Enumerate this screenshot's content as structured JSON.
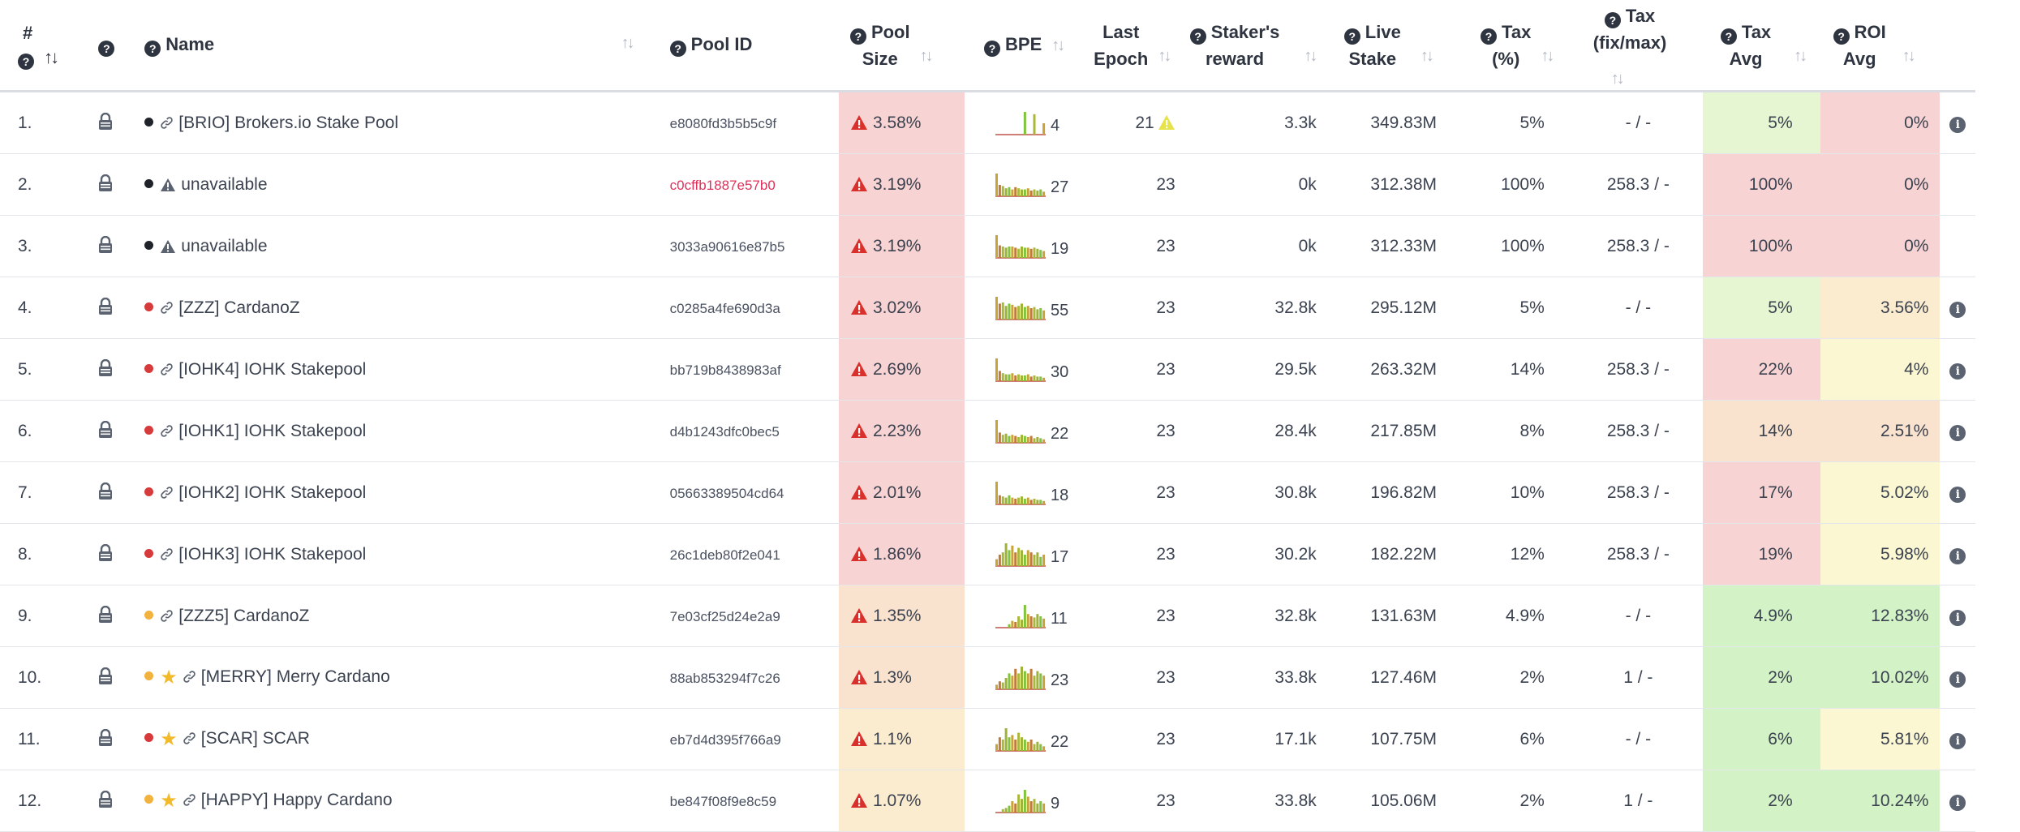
{
  "headers": {
    "num_hash": "#",
    "name": "Name",
    "pool_id": "Pool ID",
    "pool_size_1": "Pool",
    "pool_size_2": "Size",
    "bpe": "BPE",
    "last_epoch_1": "Last",
    "last_epoch_2": "Epoch",
    "staker_1": "Staker's",
    "staker_2": "reward",
    "live_1": "Live",
    "live_2": "Stake",
    "tax_1": "Tax",
    "tax_2": "(%)",
    "fix_1": "Tax",
    "fix_2": "(fix/max)",
    "taxavg_1": "Tax",
    "taxavg_2": "Avg",
    "roi_1": "ROI",
    "roi_2": "Avg"
  },
  "colors": {
    "red_bg": "#f8d3d3",
    "orange_bg": "#f9e3cf",
    "cream_bg": "#fbecd0",
    "yellow_bg": "#fbf7d2",
    "green_bg": "#d3f2c6",
    "lightgreen_bg": "#e6f6d2",
    "dot_black": "#1f2329",
    "dot_red": "#d63a3a",
    "dot_orange": "#f2b23e",
    "warn_red": "#d9302c",
    "warn_yellow": "#e6e24a"
  },
  "rows": [
    {
      "num": "1.",
      "dot": "black",
      "star": false,
      "icon": "link",
      "name": "[BRIO] Brokers.io Stake Pool",
      "pool_id": "e8080fd3b5b5c9f",
      "pid_red": false,
      "size": "3.58%",
      "size_bg": "red",
      "bpe": "4",
      "bpe_bars": [
        0,
        0,
        0,
        0,
        0,
        0,
        0,
        0,
        0,
        1,
        0,
        0,
        0.9,
        0,
        0,
        0.5
      ],
      "last": "21",
      "last_warn": true,
      "staker": "3.3k",
      "live": "349.83M",
      "tax": "5%",
      "fix": "- / -",
      "taxavg": "5%",
      "taxavg_bg": "lightgreen",
      "roi": "0%",
      "roi_bg": "red",
      "info": true
    },
    {
      "num": "2.",
      "dot": "black",
      "star": false,
      "icon": "warning",
      "name": "unavailable",
      "pool_id": "c0cffb1887e57b0",
      "pid_red": true,
      "size": "3.19%",
      "size_bg": "red",
      "bpe": "27",
      "bpe_bars": [
        1,
        0.5,
        0.45,
        0.35,
        0.4,
        0.3,
        0.4,
        0.35,
        0.3,
        0.3,
        0.35,
        0.25,
        0.3,
        0.25,
        0.3,
        0.2
      ],
      "last": "23",
      "last_warn": false,
      "staker": "0k",
      "live": "312.38M",
      "tax": "100%",
      "fix": "258.3 / -",
      "taxavg": "100%",
      "taxavg_bg": "red",
      "roi": "0%",
      "roi_bg": "red",
      "info": false
    },
    {
      "num": "3.",
      "dot": "black",
      "star": false,
      "icon": "warning",
      "name": "unavailable",
      "pool_id": "3033a90616e87b5",
      "pid_red": false,
      "size": "3.19%",
      "size_bg": "red",
      "bpe": "19",
      "bpe_bars": [
        1,
        0.55,
        0.5,
        0.45,
        0.5,
        0.5,
        0.45,
        0.4,
        0.5,
        0.45,
        0.45,
        0.4,
        0.45,
        0.4,
        0.35,
        0.3
      ],
      "last": "23",
      "last_warn": false,
      "staker": "0k",
      "live": "312.33M",
      "tax": "100%",
      "fix": "258.3 / -",
      "taxavg": "100%",
      "taxavg_bg": "red",
      "roi": "0%",
      "roi_bg": "red",
      "info": false
    },
    {
      "num": "4.",
      "dot": "red",
      "star": false,
      "icon": "link",
      "name": "[ZZZ] CardanoZ",
      "pool_id": "c0285a4fe690d3a",
      "pid_red": false,
      "size": "3.02%",
      "size_bg": "red",
      "bpe": "55",
      "bpe_bars": [
        1,
        0.7,
        0.75,
        0.6,
        0.7,
        0.65,
        0.55,
        0.6,
        0.7,
        0.55,
        0.6,
        0.5,
        0.55,
        0.45,
        0.5,
        0.4
      ],
      "last": "23",
      "last_warn": false,
      "staker": "32.8k",
      "live": "295.12M",
      "tax": "5%",
      "fix": "- / -",
      "taxavg": "5%",
      "taxavg_bg": "lightgreen",
      "roi": "3.56%",
      "roi_bg": "cream",
      "info": true
    },
    {
      "num": "5.",
      "dot": "red",
      "star": false,
      "icon": "link",
      "name": "[IOHK4] IOHK Stakepool",
      "pool_id": "bb719b8438983af",
      "pid_red": false,
      "size": "2.69%",
      "size_bg": "red",
      "bpe": "30",
      "bpe_bars": [
        1,
        0.45,
        0.35,
        0.3,
        0.3,
        0.35,
        0.25,
        0.3,
        0.25,
        0.25,
        0.3,
        0.2,
        0.25,
        0.2,
        0.2,
        0.15
      ],
      "last": "23",
      "last_warn": false,
      "staker": "29.5k",
      "live": "263.32M",
      "tax": "14%",
      "fix": "258.3 / -",
      "taxavg": "22%",
      "taxavg_bg": "red",
      "roi": "4%",
      "roi_bg": "yellow",
      "info": true
    },
    {
      "num": "6.",
      "dot": "red",
      "star": false,
      "icon": "link",
      "name": "[IOHK1] IOHK Stakepool",
      "pool_id": "d4b1243dfc0bec5",
      "pid_red": false,
      "size": "2.23%",
      "size_bg": "red",
      "bpe": "22",
      "bpe_bars": [
        1,
        0.45,
        0.35,
        0.4,
        0.3,
        0.35,
        0.3,
        0.25,
        0.35,
        0.3,
        0.25,
        0.3,
        0.2,
        0.25,
        0.2,
        0.15
      ],
      "last": "23",
      "last_warn": false,
      "staker": "28.4k",
      "live": "217.85M",
      "tax": "8%",
      "fix": "258.3 / -",
      "taxavg": "14%",
      "taxavg_bg": "orange",
      "roi": "2.51%",
      "roi_bg": "orange",
      "info": true
    },
    {
      "num": "7.",
      "dot": "red",
      "star": false,
      "icon": "link",
      "name": "[IOHK2] IOHK Stakepool",
      "pool_id": "05663389504cd64",
      "pid_red": false,
      "size": "2.01%",
      "size_bg": "red",
      "bpe": "18",
      "bpe_bars": [
        1,
        0.4,
        0.35,
        0.3,
        0.4,
        0.3,
        0.25,
        0.3,
        0.35,
        0.25,
        0.3,
        0.2,
        0.25,
        0.2,
        0.2,
        0.15
      ],
      "last": "23",
      "last_warn": false,
      "staker": "30.8k",
      "live": "196.82M",
      "tax": "10%",
      "fix": "258.3 / -",
      "taxavg": "17%",
      "taxavg_bg": "red",
      "roi": "5.02%",
      "roi_bg": "yellow",
      "info": true
    },
    {
      "num": "8.",
      "dot": "red",
      "star": false,
      "icon": "link",
      "name": "[IOHK3] IOHK Stakepool",
      "pool_id": "26c1deb80f2e041",
      "pid_red": false,
      "size": "1.86%",
      "size_bg": "red",
      "bpe": "17",
      "bpe_bars": [
        0.3,
        0.5,
        0.6,
        1,
        0.7,
        0.9,
        0.6,
        0.8,
        0.7,
        0.5,
        0.7,
        0.6,
        0.5,
        0.6,
        0.4,
        0.5
      ],
      "last": "23",
      "last_warn": false,
      "staker": "30.2k",
      "live": "182.22M",
      "tax": "12%",
      "fix": "258.3 / -",
      "taxavg": "19%",
      "taxavg_bg": "red",
      "roi": "5.98%",
      "roi_bg": "yellow",
      "info": true
    },
    {
      "num": "9.",
      "dot": "orange",
      "star": false,
      "icon": "link",
      "name": "[ZZZ5] CardanoZ",
      "pool_id": "7e03cf25d24e2a9",
      "pid_red": false,
      "size": "1.35%",
      "size_bg": "orange",
      "bpe": "11",
      "bpe_bars": [
        0,
        0,
        0,
        0,
        0.15,
        0.3,
        0.25,
        0.5,
        0.35,
        1,
        0.6,
        0.5,
        0.45,
        0.6,
        0.5,
        0.4
      ],
      "last": "23",
      "last_warn": false,
      "staker": "32.8k",
      "live": "131.63M",
      "tax": "4.9%",
      "fix": "- / -",
      "taxavg": "4.9%",
      "taxavg_bg": "green",
      "roi": "12.83%",
      "roi_bg": "green",
      "info": true
    },
    {
      "num": "10.",
      "dot": "orange",
      "star": true,
      "icon": "link",
      "name": "[MERRY] Merry Cardano",
      "pool_id": "88ab853294f7c26",
      "pid_red": false,
      "size": "1.3%",
      "size_bg": "orange",
      "bpe": "23",
      "bpe_bars": [
        0.2,
        0.35,
        0.3,
        0.5,
        0.7,
        0.6,
        0.9,
        0.7,
        1,
        0.8,
        0.7,
        0.9,
        0.6,
        0.8,
        0.7,
        0.6
      ],
      "last": "23",
      "last_warn": false,
      "staker": "33.8k",
      "live": "127.46M",
      "tax": "2%",
      "fix": "1 / -",
      "taxavg": "2%",
      "taxavg_bg": "green",
      "roi": "10.02%",
      "roi_bg": "green",
      "info": true
    },
    {
      "num": "11.",
      "dot": "red",
      "star": true,
      "icon": "link",
      "name": "[SCAR] SCAR",
      "pool_id": "eb7d4d395f766a9",
      "pid_red": false,
      "size": "1.1%",
      "size_bg": "cream",
      "bpe": "22",
      "bpe_bars": [
        0.3,
        0.6,
        0.5,
        1,
        0.6,
        0.7,
        0.5,
        0.8,
        0.6,
        0.5,
        0.4,
        0.5,
        0.3,
        0.4,
        0.3,
        0.2
      ],
      "last": "23",
      "last_warn": false,
      "staker": "17.1k",
      "live": "107.75M",
      "tax": "6%",
      "fix": "- / -",
      "taxavg": "6%",
      "taxavg_bg": "green",
      "roi": "5.81%",
      "roi_bg": "yellow",
      "info": true
    },
    {
      "num": "12.",
      "dot": "orange",
      "star": true,
      "icon": "link",
      "name": "[HAPPY] Happy Cardano",
      "pool_id": "be847f08f9e8c59",
      "pid_red": false,
      "size": "1.07%",
      "size_bg": "cream",
      "bpe": "9",
      "bpe_bars": [
        0,
        0,
        0.15,
        0.2,
        0.3,
        0.5,
        0.4,
        0.8,
        0.6,
        1,
        0.7,
        0.5,
        0.6,
        0.4,
        0.5,
        0.4
      ],
      "last": "23",
      "last_warn": false,
      "staker": "33.8k",
      "live": "105.06M",
      "tax": "2%",
      "fix": "1 / -",
      "taxavg": "2%",
      "taxavg_bg": "green",
      "roi": "10.24%",
      "roi_bg": "green",
      "info": true
    }
  ]
}
